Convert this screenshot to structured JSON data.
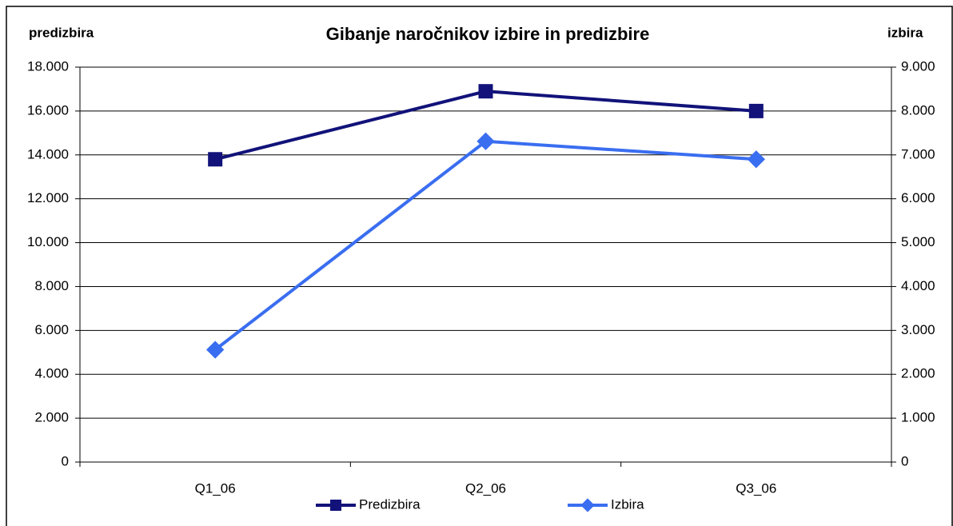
{
  "chart_data": {
    "type": "line",
    "title": "Gibanje naročnikov izbire in predizbire",
    "y_label": "predizbira",
    "y2_label": "izbira",
    "categories": [
      "Q1_06",
      "Q2_06",
      "Q3_06"
    ],
    "series": [
      {
        "name": "Predizbira",
        "color": "#12127a",
        "marker": "square",
        "values": [
          13800,
          16900,
          16000
        ]
      },
      {
        "name": "Izbira",
        "color": "#3a6ef0",
        "marker": "diamond",
        "axis": "y2",
        "values": [
          2560,
          7310,
          6900
        ]
      }
    ],
    "ylim": [
      0,
      18000
    ],
    "yticks": [
      0,
      {
        "value": 2000,
        "label": "2.000"
      },
      {
        "value": 4000,
        "label": "4.000"
      },
      {
        "value": 6000,
        "label": "6.000"
      },
      {
        "value": 8000,
        "label": "8.000"
      },
      {
        "value": 10000,
        "label": "10.000"
      },
      {
        "value": 12000,
        "label": "12.000"
      },
      {
        "value": 14000,
        "label": "14.000"
      },
      {
        "value": 16000,
        "label": "16.000"
      },
      {
        "value": 18000,
        "label": "18.000"
      }
    ],
    "y2lim": [
      0,
      9000
    ],
    "y2ticks": [
      0,
      {
        "value": 1000,
        "label": "1.000"
      },
      {
        "value": 2000,
        "label": "2.000"
      },
      {
        "value": 3000,
        "label": "3.000"
      },
      {
        "value": 4000,
        "label": "4.000"
      },
      {
        "value": 5000,
        "label": "5.000"
      },
      {
        "value": 6000,
        "label": "6.000"
      },
      {
        "value": 7000,
        "label": "7.000"
      },
      {
        "value": 8000,
        "label": "8.000"
      },
      {
        "value": 9000,
        "label": "9.000"
      }
    ],
    "grid": true,
    "legend": "bottom"
  }
}
